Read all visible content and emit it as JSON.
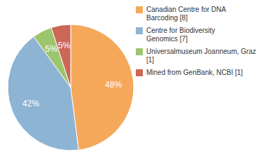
{
  "chart_data": {
    "type": "pie",
    "categories": [
      "Canadian Centre for DNA\nBarcoding [8]",
      "Centre for Biodiversity\nGenomics [7]",
      "Universalmuseum Joanneum, Graz [1]",
      "Mined from GenBank, NCBI [1]"
    ],
    "values": [
      48,
      42,
      5,
      5
    ],
    "value_labels": [
      "48%",
      "42%",
      "5%",
      "5%"
    ],
    "colors": [
      "#F5A85A",
      "#8EB4D4",
      "#9DC56E",
      "#CC6655"
    ],
    "data_labels": true,
    "legend": "right"
  }
}
